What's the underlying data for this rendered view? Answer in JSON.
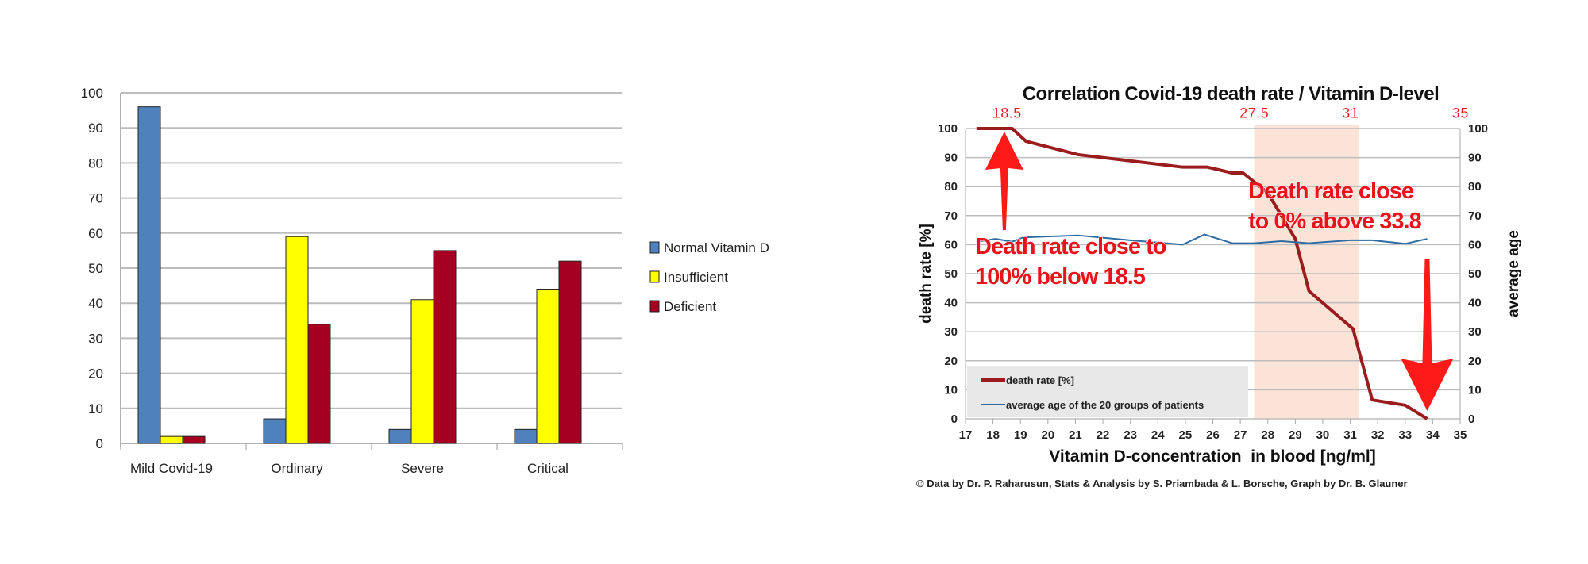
{
  "chart_data": [
    {
      "type": "bar",
      "title": "",
      "xlabel": "",
      "ylabel": "",
      "ylim": [
        0,
        100
      ],
      "yticks": [
        "0",
        "10",
        "20",
        "30",
        "40",
        "50",
        "60",
        "70",
        "80",
        "90",
        "100"
      ],
      "categories": [
        "Mild Covid-19",
        "Ordinary",
        "Severe",
        "Critical"
      ],
      "series": [
        {
          "name": "Normal Vitamin D",
          "color": "#4f81bd",
          "values": [
            96,
            7,
            4,
            4
          ]
        },
        {
          "name": "Insufficient",
          "color": "#ffff00",
          "values": [
            2,
            59,
            41,
            44
          ]
        },
        {
          "name": "Deficient",
          "color": "#a50021",
          "values": [
            2,
            34,
            55,
            52
          ]
        }
      ],
      "legend": "right",
      "grid": true
    },
    {
      "type": "line",
      "title": "Correlation Covid-19 death rate / Vitamin D-level",
      "xlabel": "Vitamin D-concentration  in blood [ng/ml]",
      "ylabel": "death rate [%]",
      "y2label": "average age",
      "xlim": [
        17,
        35
      ],
      "ylim": [
        0,
        100
      ],
      "y2lim": [
        0,
        100
      ],
      "xticks": [
        "17",
        "18",
        "19",
        "20",
        "21",
        "22",
        "23",
        "24",
        "25",
        "26",
        "27",
        "28",
        "29",
        "30",
        "31",
        "32",
        "33",
        "34",
        "35"
      ],
      "yticks": [
        "0",
        "10",
        "20",
        "30",
        "40",
        "50",
        "60",
        "70",
        "80",
        "90",
        "100"
      ],
      "top_markers": [
        {
          "label": "18.5",
          "x": 18.5
        },
        {
          "label": "27.5",
          "x": 27.5
        },
        {
          "label": "31",
          "x": 31
        },
        {
          "label": "35",
          "x": 35
        }
      ],
      "shaded_band": {
        "from": 27.5,
        "to": 31.3,
        "color": "#fbe3d8"
      },
      "series": [
        {
          "name": "death rate [%]",
          "color": "#9b1c1c",
          "axis": "left",
          "x": [
            17.4,
            18.7,
            19.2,
            21.1,
            24.9,
            25.8,
            26.7,
            27.1,
            28.0,
            29.0,
            29.5,
            31.1,
            31.8,
            33.0,
            33.8
          ],
          "y": [
            100,
            100,
            95.6,
            91,
            86.7,
            86.7,
            84.7,
            84.7,
            77.8,
            62,
            44,
            31,
            6.5,
            4.7,
            0
          ]
        },
        {
          "name": "average age of the 20 groups of patients",
          "color": "#2e6da4",
          "axis": "right",
          "x": [
            17.4,
            18.1,
            18.7,
            19.1,
            21.1,
            23.0,
            24.9,
            25.7,
            26.7,
            27.5,
            28.5,
            29.5,
            31.0,
            31.8,
            33.0,
            33.8
          ],
          "y": [
            61,
            62,
            61,
            62.5,
            63.2,
            61.5,
            60,
            63.5,
            60.5,
            60.5,
            61.2,
            60.5,
            61.5,
            61.5,
            60.3,
            62
          ]
        }
      ],
      "annotations": [
        {
          "lines": [
            "Death rate close to",
            "100% below 18.5"
          ],
          "arrow": "up",
          "x": 18.5
        },
        {
          "lines": [
            "Death rate close",
            "to 0% above 33.8"
          ],
          "arrow": "down",
          "x": 33.8
        }
      ],
      "legend": "bottom-left",
      "credit": "© Data by Dr. P. Raharusun, Stats & Analysis by S. Priambada & L. Borsche, Graph by Dr. B. Glauner"
    }
  ]
}
